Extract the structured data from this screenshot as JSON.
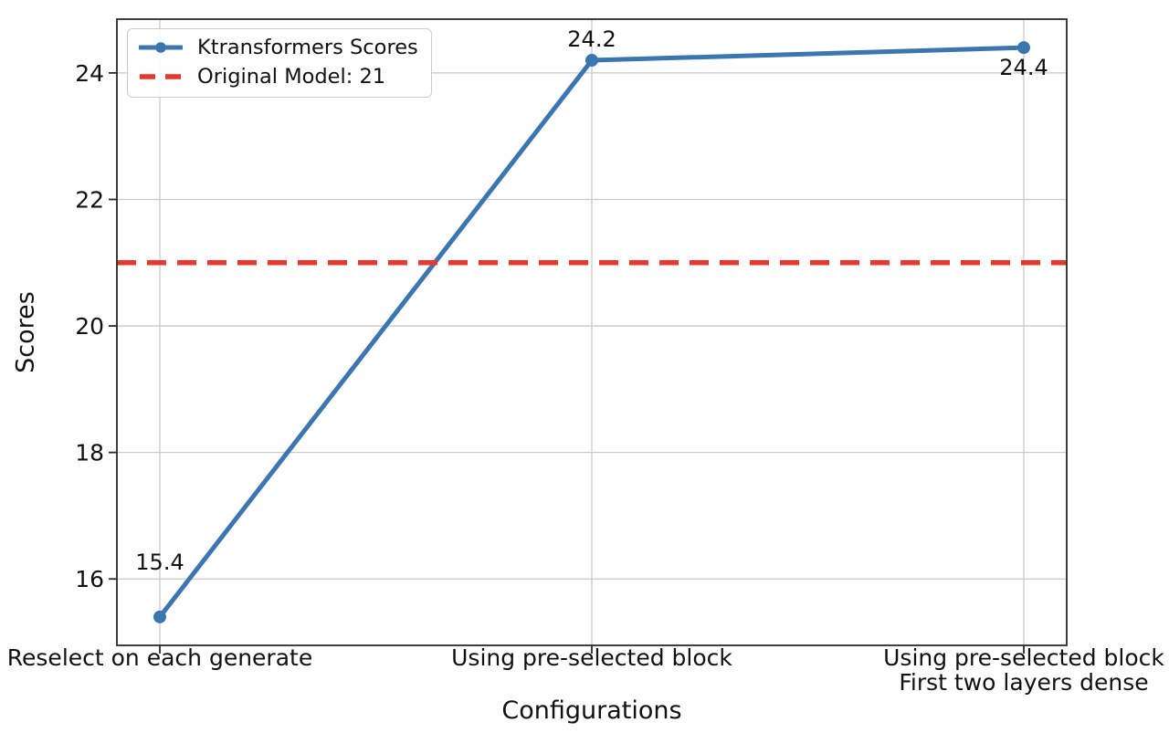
{
  "chart_data": {
    "type": "line",
    "title": "",
    "xlabel": "Configurations",
    "ylabel": "Scores",
    "categories": [
      "Reselect on each generate",
      "Using pre-selected block",
      "Using pre-selected block\nFirst two layers dense"
    ],
    "series": [
      {
        "name": "Ktransformers Scores",
        "color": "#3b76b0",
        "marker": "circle",
        "values": [
          15.4,
          24.2,
          24.4
        ],
        "point_labels": [
          "15.4",
          "24.2",
          "24.4"
        ],
        "point_label_placement": [
          "above-far",
          "above",
          "below"
        ]
      }
    ],
    "reference_line": {
      "label": "Original Model: 21",
      "value": 21,
      "color": "#e8372c",
      "style": "dashed"
    },
    "yticks": [
      16,
      18,
      20,
      22,
      24
    ],
    "ylim": [
      14.95,
      24.85
    ],
    "grid": true,
    "legend_position": "upper-left",
    "colors": {
      "grid": "#c9c9c9",
      "spine": "#2a2a2a",
      "text": "#111111",
      "background": "#ffffff"
    }
  }
}
